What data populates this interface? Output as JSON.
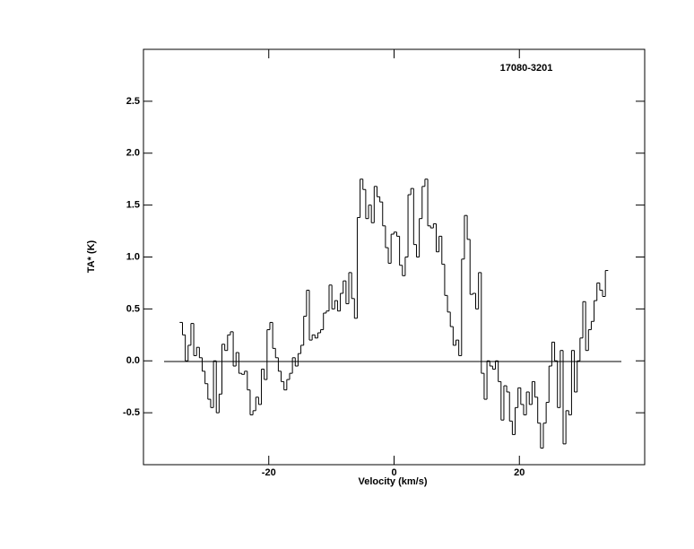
{
  "chart_data": {
    "type": "step",
    "title": "17080-3201",
    "xlabel": "Velocity (km/s)",
    "ylabel": "TA* (K)",
    "xlim": [
      -40,
      40
    ],
    "ylim": [
      -1,
      3
    ],
    "xticks": [
      -20,
      {
        "value": 0,
        "label": "0"
      },
      20
    ],
    "yticks": [
      -0.5,
      {
        "value": 0,
        "label": "0.0"
      },
      0.5,
      {
        "value": 1,
        "label": "1.0"
      },
      1.5,
      {
        "value": 2,
        "label": "2.0"
      },
      2.5
    ],
    "color": "#000000",
    "x": [
      -34,
      -33.55,
      -33.1,
      -32.65,
      -32.2,
      -31.75,
      -31.3,
      -30.85,
      -30.4,
      -29.95,
      -29.5,
      -29.05,
      -28.6,
      -28.15,
      -27.7,
      -27.25,
      -26.8,
      -26.35,
      -25.9,
      -25.45,
      -25,
      -24.55,
      -24.1,
      -23.65,
      -23.2,
      -22.75,
      -22.3,
      -21.85,
      -21.4,
      -20.95,
      -20.5,
      -20.05,
      -19.6,
      -19.15,
      -18.7,
      -18.25,
      -17.8,
      -17.35,
      -16.9,
      -16.45,
      -16,
      -15.55,
      -15.1,
      -14.65,
      -14.2,
      -13.75,
      -13.3,
      -12.85,
      -12.4,
      -11.95,
      -11.5,
      -11.05,
      -10.6,
      -10.15,
      -9.7,
      -9.25,
      -8.8,
      -8.35,
      -7.9,
      -7.45,
      -7,
      -6.55,
      -6.1,
      -5.65,
      -5.2,
      -4.75,
      -4.3,
      -3.85,
      -3.4,
      -2.95,
      -2.5,
      -2.05,
      -1.6,
      -1.15,
      -0.7,
      -0.25,
      0.2,
      0.65,
      1.1,
      1.55,
      2,
      2.45,
      2.9,
      3.35,
      3.8,
      4.25,
      4.7,
      5.15,
      5.6,
      6.05,
      6.5,
      6.95,
      7.4,
      7.85,
      8.3,
      8.75,
      9.2,
      9.65,
      10.1,
      10.55,
      11,
      11.45,
      11.9,
      12.35,
      12.8,
      13.25,
      13.7,
      14.15,
      14.6,
      15.05,
      15.5,
      15.95,
      16.4,
      16.85,
      17.3,
      17.75,
      18.2,
      18.65,
      19.1,
      19.55,
      20,
      20.45,
      20.9,
      21.35,
      21.8,
      22.25,
      22.7,
      23.15,
      23.6,
      24.05,
      24.5,
      24.95,
      25.4,
      25.85,
      26.3,
      26.75,
      27.2,
      27.65,
      28.1,
      28.55,
      29,
      29.45,
      29.9,
      30.35,
      30.8,
      31.25,
      31.7,
      32.15,
      32.6,
      33.05,
      33.5,
      33.95
    ],
    "values": [
      0.37,
      0.25,
      0.0,
      0.15,
      0.36,
      0.05,
      0.13,
      0.03,
      -0.1,
      -0.22,
      -0.37,
      -0.45,
      0.0,
      -0.5,
      -0.32,
      0.16,
      0.1,
      0.25,
      0.28,
      -0.05,
      0.08,
      -0.12,
      -0.13,
      -0.1,
      -0.28,
      -0.52,
      -0.48,
      -0.35,
      -0.42,
      -0.08,
      -0.18,
      0.3,
      0.37,
      0.12,
      0.03,
      -0.1,
      -0.2,
      -0.28,
      -0.18,
      -0.12,
      0.03,
      -0.05,
      0.07,
      0.15,
      0.43,
      0.68,
      0.2,
      0.25,
      0.22,
      0.27,
      0.3,
      0.46,
      0.48,
      0.73,
      0.5,
      0.58,
      0.48,
      0.65,
      0.77,
      0.55,
      0.85,
      0.6,
      0.41,
      1.38,
      1.75,
      1.65,
      1.37,
      1.5,
      1.33,
      1.68,
      1.58,
      1.53,
      1.3,
      1.09,
      0.94,
      1.22,
      1.24,
      1.2,
      0.92,
      0.82,
      1.0,
      1.6,
      1.66,
      1.12,
      1.0,
      1.37,
      1.68,
      1.75,
      1.3,
      1.28,
      1.32,
      1.05,
      1.2,
      0.93,
      0.63,
      0.47,
      0.33,
      0.15,
      0.2,
      0.05,
      0.98,
      1.4,
      1.17,
      0.64,
      0.65,
      0.5,
      0.85,
      -0.12,
      -0.37,
      0.0,
      -0.05,
      -0.08,
      0.0,
      -0.2,
      -0.57,
      -0.24,
      -0.3,
      -0.58,
      -0.71,
      -0.45,
      -0.26,
      -0.42,
      -0.52,
      -0.3,
      -0.42,
      -0.2,
      -0.35,
      -0.6,
      -0.84,
      -0.6,
      -0.4,
      -0.05,
      0.18,
      0.0,
      -0.45,
      0.1,
      -0.8,
      -0.48,
      -0.52,
      0.1,
      -0.3,
      0.0,
      0.22,
      0.57,
      0.1,
      0.3,
      0.38,
      0.58,
      0.75,
      0.68,
      0.62,
      0.87
    ]
  }
}
